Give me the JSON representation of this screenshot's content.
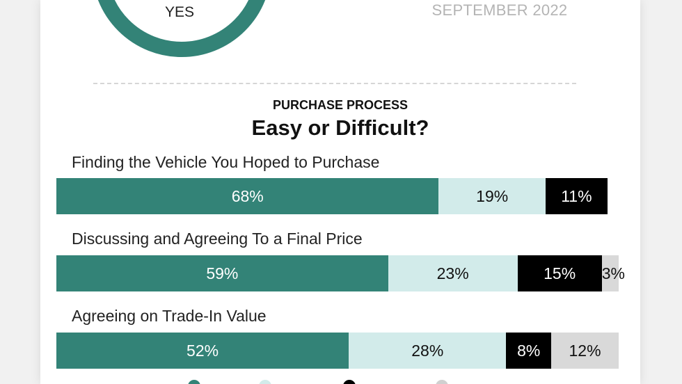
{
  "header": {
    "donut_label": "YES",
    "date": "SEPTEMBER 2022"
  },
  "chart_data": {
    "type": "bar",
    "orientation": "horizontal",
    "stacked": true,
    "section": "PURCHASE PROCESS",
    "title": "Easy or Difficult?",
    "categories": [
      "Finding the Vehicle You Hoped to Purchase",
      "Discussing and Agreeing To a Final Price",
      "Agreeing on Trade-In Value"
    ],
    "series": [
      {
        "color": "#338377",
        "text_color": "#ffffff",
        "values": [
          68,
          59,
          52
        ]
      },
      {
        "color": "#d2ebea",
        "text_color": "#111111",
        "values": [
          19,
          23,
          28
        ]
      },
      {
        "color": "#000000",
        "text_color": "#ffffff",
        "values": [
          11,
          15,
          8
        ]
      },
      {
        "color": "#d9d9d9",
        "text_color": "#111111",
        "values": [
          0,
          3,
          12
        ]
      }
    ],
    "xlim": [
      0,
      100
    ],
    "value_suffix": "%"
  },
  "colors": {
    "accent": "#338377",
    "donut_track": "#338377"
  }
}
